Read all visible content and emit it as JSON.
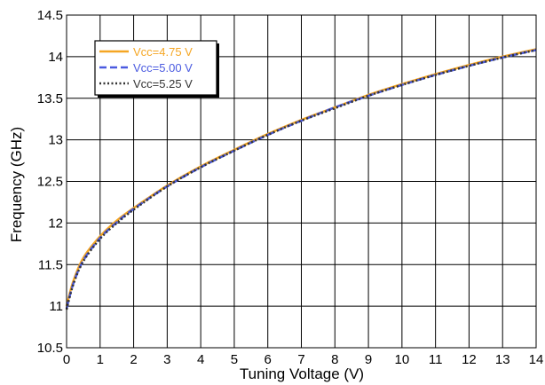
{
  "chart_data": {
    "type": "line",
    "title": "",
    "xlabel": "Tuning Voltage (V)",
    "ylabel": "Frequency (GHz)",
    "xlim": [
      0,
      14
    ],
    "ylim": [
      10.5,
      14.5
    ],
    "x_ticks": [
      "0",
      "1",
      "2",
      "3",
      "4",
      "5",
      "6",
      "7",
      "8",
      "9",
      "10",
      "11",
      "12",
      "13",
      "14"
    ],
    "y_ticks": [
      "10.5",
      "11",
      "11.5",
      "12",
      "12.5",
      "13",
      "13.5",
      "14",
      "14.5"
    ],
    "grid": true,
    "legend_position": "top-left",
    "x": [
      0,
      0.2,
      0.5,
      1,
      1.5,
      2,
      3,
      4,
      5,
      6,
      7,
      8,
      9,
      10,
      11,
      12,
      13,
      14
    ],
    "series": [
      {
        "name": "Vcc=4.75 V",
        "color": "#f5a623",
        "dash": "solid",
        "values": [
          11.0,
          11.3,
          11.58,
          11.84,
          12.03,
          12.18,
          12.45,
          12.68,
          12.88,
          13.07,
          13.24,
          13.39,
          13.54,
          13.67,
          13.79,
          13.9,
          14.0,
          14.09
        ]
      },
      {
        "name": "Vcc=5.00 V",
        "color": "#4a5ae0",
        "dash": "dashed",
        "values": [
          10.97,
          11.27,
          11.55,
          11.82,
          12.01,
          12.17,
          12.44,
          12.67,
          12.87,
          13.06,
          13.23,
          13.39,
          13.53,
          13.66,
          13.78,
          13.89,
          13.99,
          14.08
        ]
      },
      {
        "name": "Vcc=5.25 V",
        "color": "#333333",
        "dash": "dotted",
        "values": [
          10.96,
          11.26,
          11.54,
          11.81,
          12.0,
          12.16,
          12.44,
          12.67,
          12.87,
          13.06,
          13.23,
          13.38,
          13.53,
          13.66,
          13.78,
          13.89,
          13.99,
          14.08
        ]
      }
    ]
  }
}
